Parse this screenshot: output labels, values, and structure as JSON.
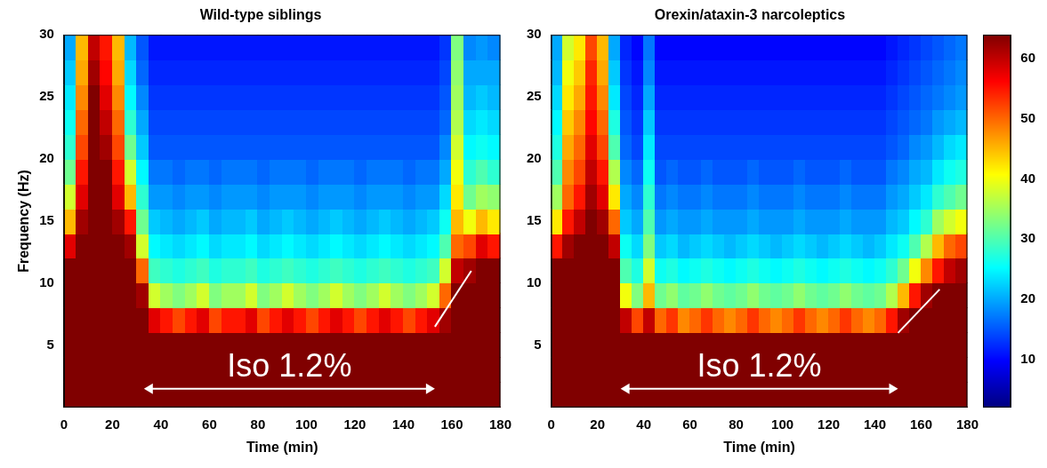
{
  "chart_data": [
    {
      "type": "heatmap",
      "title": "Wild-type siblings",
      "x_label": "Time (min)",
      "y_label": "Frequency (Hz)",
      "xlim": [
        0,
        180
      ],
      "xticks": [
        0,
        20,
        40,
        60,
        80,
        100,
        120,
        140,
        160,
        180
      ],
      "ylim": [
        0,
        30
      ],
      "yticks": [
        5,
        10,
        15,
        20,
        25,
        30
      ],
      "x_bins": [
        0,
        5,
        10,
        15,
        20,
        25,
        30,
        35,
        40,
        45,
        50,
        55,
        60,
        65,
        70,
        75,
        80,
        85,
        90,
        95,
        100,
        105,
        110,
        115,
        120,
        125,
        130,
        135,
        140,
        145,
        150,
        155,
        160,
        165,
        170,
        175,
        180
      ],
      "y_bins": [
        0,
        2,
        4,
        6,
        8,
        10,
        12,
        14,
        16,
        18,
        20,
        22,
        24,
        26,
        28,
        30
      ],
      "cells": [
        [
          64,
          64,
          64,
          64,
          64,
          64,
          58,
          45,
          38,
          32,
          28,
          26,
          24,
          22,
          20
        ],
        [
          64,
          64,
          64,
          64,
          64,
          64,
          64,
          62,
          58,
          55,
          52,
          50,
          48,
          46,
          45
        ],
        [
          64,
          64,
          64,
          64,
          64,
          64,
          64,
          64,
          64,
          64,
          64,
          64,
          64,
          62,
          60
        ],
        [
          64,
          64,
          64,
          64,
          64,
          64,
          64,
          64,
          64,
          64,
          62,
          60,
          58,
          56,
          55
        ],
        [
          64,
          64,
          64,
          64,
          64,
          64,
          64,
          62,
          58,
          55,
          52,
          50,
          48,
          46,
          45
        ],
        [
          64,
          64,
          64,
          64,
          64,
          64,
          62,
          55,
          45,
          38,
          32,
          28,
          25,
          23,
          21
        ],
        [
          64,
          64,
          64,
          64,
          62,
          50,
          38,
          32,
          28,
          25,
          22,
          20,
          18,
          16,
          15
        ],
        [
          64,
          64,
          64,
          58,
          38,
          29,
          25,
          22,
          19,
          17,
          15,
          14,
          13,
          12,
          11
        ],
        [
          64,
          64,
          64,
          55,
          35,
          28,
          24,
          21,
          19,
          17,
          15,
          14,
          13,
          12,
          11
        ],
        [
          64,
          64,
          64,
          52,
          33,
          27,
          23,
          20,
          18,
          16,
          15,
          14,
          13,
          12,
          11
        ],
        [
          64,
          64,
          64,
          55,
          35,
          28,
          24,
          21,
          19,
          17,
          15,
          14,
          13,
          12,
          11
        ],
        [
          64,
          64,
          64,
          58,
          38,
          29,
          25,
          22,
          19,
          17,
          15,
          14,
          13,
          12,
          11
        ],
        [
          64,
          64,
          64,
          52,
          33,
          27,
          23,
          20,
          18,
          16,
          15,
          14,
          13,
          12,
          11
        ],
        [
          64,
          64,
          64,
          55,
          35,
          28,
          24,
          21,
          19,
          17,
          15,
          14,
          13,
          12,
          11
        ],
        [
          64,
          64,
          64,
          55,
          35,
          28,
          24,
          21,
          19,
          17,
          15,
          14,
          13,
          12,
          11
        ],
        [
          64,
          64,
          64,
          58,
          38,
          29,
          25,
          22,
          19,
          17,
          15,
          14,
          13,
          12,
          11
        ],
        [
          64,
          64,
          64,
          52,
          33,
          27,
          23,
          20,
          18,
          16,
          15,
          14,
          13,
          12,
          11
        ],
        [
          64,
          64,
          64,
          55,
          35,
          28,
          24,
          21,
          19,
          17,
          15,
          14,
          13,
          12,
          11
        ],
        [
          64,
          64,
          64,
          58,
          38,
          29,
          25,
          22,
          19,
          17,
          15,
          14,
          13,
          12,
          11
        ],
        [
          64,
          64,
          64,
          55,
          35,
          28,
          24,
          21,
          19,
          17,
          15,
          14,
          13,
          12,
          11
        ],
        [
          64,
          64,
          64,
          52,
          33,
          27,
          23,
          20,
          18,
          16,
          15,
          14,
          13,
          12,
          11
        ],
        [
          64,
          64,
          64,
          55,
          35,
          28,
          24,
          21,
          19,
          17,
          15,
          14,
          13,
          12,
          11
        ],
        [
          64,
          64,
          64,
          58,
          38,
          29,
          25,
          22,
          19,
          17,
          15,
          14,
          13,
          12,
          11
        ],
        [
          64,
          64,
          64,
          55,
          35,
          28,
          24,
          21,
          19,
          17,
          15,
          14,
          13,
          12,
          11
        ],
        [
          64,
          64,
          64,
          52,
          33,
          27,
          23,
          20,
          18,
          16,
          15,
          14,
          13,
          12,
          11
        ],
        [
          64,
          64,
          64,
          55,
          35,
          28,
          24,
          21,
          19,
          17,
          15,
          14,
          13,
          12,
          11
        ],
        [
          64,
          64,
          64,
          58,
          38,
          29,
          25,
          22,
          19,
          17,
          15,
          14,
          13,
          12,
          11
        ],
        [
          64,
          64,
          64,
          55,
          35,
          28,
          24,
          21,
          19,
          17,
          15,
          14,
          13,
          12,
          11
        ],
        [
          64,
          64,
          64,
          52,
          33,
          27,
          23,
          20,
          18,
          16,
          15,
          14,
          13,
          12,
          11
        ],
        [
          64,
          64,
          64,
          55,
          35,
          28,
          24,
          21,
          19,
          17,
          15,
          14,
          13,
          12,
          11
        ],
        [
          64,
          64,
          64,
          58,
          38,
          29,
          25,
          22,
          19,
          17,
          15,
          14,
          13,
          12,
          11
        ],
        [
          64,
          64,
          64,
          62,
          50,
          38,
          30,
          26,
          23,
          20,
          18,
          16,
          15,
          14,
          13
        ],
        [
          64,
          64,
          64,
          64,
          64,
          60,
          50,
          45,
          42,
          40,
          38,
          36,
          35,
          34,
          33
        ],
        [
          64,
          64,
          64,
          64,
          64,
          62,
          52,
          40,
          32,
          28,
          25,
          23,
          21,
          20,
          18
        ],
        [
          64,
          64,
          64,
          64,
          64,
          64,
          58,
          45,
          35,
          30,
          26,
          24,
          22,
          20,
          19
        ],
        [
          64,
          64,
          64,
          64,
          64,
          64,
          55,
          42,
          34,
          28,
          25,
          23,
          21,
          20,
          18
        ]
      ],
      "annotation": {
        "text": "Iso 1.2%",
        "arrow_x": [
          33,
          153
        ],
        "arrow_y": 1.5
      },
      "line": {
        "x": [
          153,
          168
        ],
        "y": [
          6.5,
          11
        ],
        "color": "#ffffff"
      }
    },
    {
      "type": "heatmap",
      "title": "Orexin/ataxin-3 narcoleptics",
      "x_label": "Time (min)",
      "xlim": [
        0,
        180
      ],
      "xticks": [
        0,
        20,
        40,
        60,
        80,
        100,
        120,
        140,
        160,
        180
      ],
      "ylim": [
        0,
        30
      ],
      "yticks": [
        5,
        10,
        15,
        20,
        25,
        30
      ],
      "x_bins": [
        0,
        5,
        10,
        15,
        20,
        25,
        30,
        35,
        40,
        45,
        50,
        55,
        60,
        65,
        70,
        75,
        80,
        85,
        90,
        95,
        100,
        105,
        110,
        115,
        120,
        125,
        130,
        135,
        140,
        145,
        150,
        155,
        160,
        165,
        170,
        175,
        180
      ],
      "y_bins": [
        0,
        2,
        4,
        6,
        8,
        10,
        12,
        14,
        16,
        18,
        20,
        22,
        24,
        26,
        28,
        30
      ],
      "cells": [
        [
          64,
          64,
          64,
          64,
          64,
          64,
          55,
          42,
          35,
          30,
          27,
          25,
          23,
          21,
          20
        ],
        [
          64,
          64,
          64,
          64,
          64,
          64,
          62,
          55,
          50,
          48,
          46,
          44,
          42,
          40,
          38
        ],
        [
          64,
          64,
          64,
          64,
          64,
          64,
          64,
          60,
          55,
          52,
          50,
          48,
          46,
          44,
          42
        ],
        [
          64,
          64,
          64,
          64,
          64,
          64,
          64,
          64,
          62,
          60,
          58,
          56,
          55,
          54,
          52
        ],
        [
          64,
          64,
          64,
          64,
          64,
          64,
          64,
          62,
          58,
          55,
          52,
          50,
          48,
          46,
          45
        ],
        [
          64,
          64,
          64,
          64,
          64,
          64,
          60,
          50,
          42,
          36,
          30,
          27,
          24,
          22,
          20
        ],
        [
          64,
          64,
          64,
          60,
          40,
          30,
          26,
          22,
          20,
          18,
          16,
          15,
          14,
          13,
          12
        ],
        [
          64,
          64,
          64,
          52,
          33,
          27,
          23,
          20,
          18,
          16,
          14,
          13,
          12,
          11,
          10
        ],
        [
          64,
          64,
          64,
          60,
          45,
          38,
          33,
          30,
          28,
          26,
          24,
          22,
          20,
          18,
          17
        ],
        [
          64,
          64,
          64,
          50,
          32,
          26,
          22,
          19,
          17,
          15,
          14,
          13,
          12,
          11,
          10
        ],
        [
          64,
          64,
          64,
          53,
          34,
          27,
          23,
          20,
          18,
          16,
          14,
          13,
          12,
          11,
          10
        ],
        [
          64,
          64,
          64,
          48,
          31,
          25,
          21,
          19,
          17,
          15,
          14,
          13,
          12,
          11,
          10
        ],
        [
          64,
          64,
          64,
          50,
          32,
          26,
          22,
          19,
          17,
          15,
          14,
          13,
          12,
          11,
          10
        ],
        [
          64,
          64,
          64,
          53,
          34,
          27,
          23,
          20,
          18,
          16,
          14,
          13,
          12,
          11,
          10
        ],
        [
          64,
          64,
          64,
          50,
          32,
          26,
          22,
          19,
          17,
          15,
          14,
          13,
          12,
          11,
          10
        ],
        [
          64,
          64,
          64,
          48,
          31,
          25,
          21,
          19,
          17,
          15,
          14,
          13,
          12,
          11,
          10
        ],
        [
          64,
          64,
          64,
          50,
          32,
          26,
          22,
          19,
          17,
          15,
          14,
          13,
          12,
          11,
          10
        ],
        [
          64,
          64,
          64,
          53,
          34,
          27,
          23,
          20,
          18,
          16,
          14,
          13,
          12,
          11,
          10
        ],
        [
          64,
          64,
          64,
          50,
          32,
          26,
          22,
          19,
          17,
          15,
          14,
          13,
          12,
          11,
          10
        ],
        [
          64,
          64,
          64,
          48,
          31,
          25,
          21,
          19,
          17,
          15,
          14,
          13,
          12,
          11,
          10
        ],
        [
          64,
          64,
          64,
          50,
          32,
          26,
          22,
          19,
          17,
          15,
          14,
          13,
          12,
          11,
          10
        ],
        [
          64,
          64,
          64,
          53,
          34,
          27,
          23,
          20,
          18,
          16,
          14,
          13,
          12,
          11,
          10
        ],
        [
          64,
          64,
          64,
          50,
          32,
          26,
          22,
          19,
          17,
          15,
          14,
          13,
          12,
          11,
          10
        ],
        [
          64,
          64,
          64,
          48,
          31,
          25,
          21,
          19,
          17,
          15,
          14,
          13,
          12,
          11,
          10
        ],
        [
          64,
          64,
          64,
          50,
          32,
          26,
          22,
          19,
          17,
          15,
          14,
          13,
          12,
          11,
          10
        ],
        [
          64,
          64,
          64,
          53,
          34,
          27,
          23,
          20,
          18,
          16,
          14,
          13,
          12,
          11,
          10
        ],
        [
          64,
          64,
          64,
          50,
          32,
          26,
          22,
          19,
          17,
          15,
          14,
          13,
          12,
          11,
          10
        ],
        [
          64,
          64,
          64,
          48,
          31,
          25,
          21,
          19,
          17,
          15,
          14,
          13,
          12,
          11,
          10
        ],
        [
          64,
          64,
          64,
          50,
          32,
          26,
          22,
          19,
          17,
          15,
          14,
          13,
          12,
          11,
          10
        ],
        [
          64,
          64,
          64,
          55,
          36,
          28,
          24,
          21,
          19,
          17,
          15,
          14,
          13,
          12,
          11
        ],
        [
          64,
          64,
          64,
          62,
          45,
          32,
          26,
          22,
          20,
          18,
          16,
          15,
          14,
          13,
          12
        ],
        [
          64,
          64,
          64,
          64,
          55,
          40,
          30,
          25,
          22,
          20,
          18,
          16,
          15,
          14,
          13
        ],
        [
          64,
          64,
          64,
          64,
          62,
          48,
          36,
          28,
          24,
          21,
          19,
          17,
          16,
          15,
          14
        ],
        [
          64,
          64,
          64,
          64,
          64,
          55,
          45,
          35,
          28,
          24,
          21,
          19,
          17,
          16,
          15
        ],
        [
          64,
          64,
          64,
          64,
          64,
          60,
          50,
          38,
          30,
          26,
          23,
          20,
          18,
          17,
          16
        ],
        [
          64,
          64,
          64,
          64,
          64,
          62,
          52,
          40,
          32,
          27,
          24,
          21,
          19,
          18,
          17
        ]
      ],
      "annotation": {
        "text": "Iso 1.2%",
        "arrow_x": [
          30,
          150
        ],
        "arrow_y": 1.5
      },
      "line": {
        "x": [
          150,
          168
        ],
        "y": [
          6,
          9.5
        ],
        "color": "#ffffff"
      },
      "colorbar": {
        "range": [
          2,
          64
        ],
        "ticks": [
          10,
          20,
          30,
          40,
          50,
          60
        ]
      }
    }
  ]
}
